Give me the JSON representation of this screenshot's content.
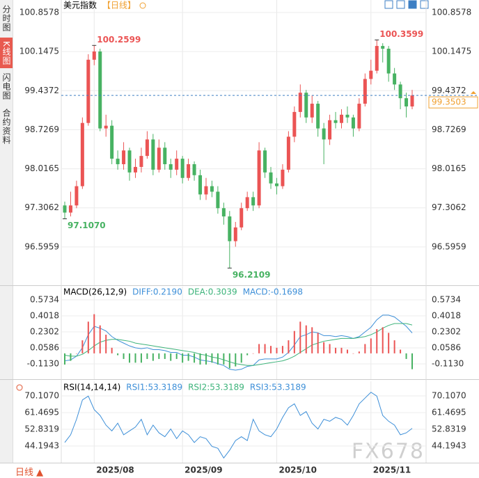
{
  "ui": {
    "tabs": [
      "分时图",
      "K线图",
      "闪电图",
      "合约资料"
    ],
    "period_button": "日线",
    "watermark": "FX678"
  },
  "chart_data": [
    {
      "type": "candlestick",
      "title": "美元指数",
      "subtitle": "【日线】",
      "up_color": "#eb5454",
      "down_color": "#47b262",
      "ylim": [
        95.898,
        101.086
      ],
      "yticks": [
        100.8578,
        100.1475,
        99.4372,
        98.7269,
        98.0165,
        97.3062,
        96.5959
      ],
      "grid": true,
      "open": [
        97.35,
        97.22,
        97.35,
        97.7,
        98.85,
        100.0,
        100.15,
        98.75,
        98.8,
        98.2,
        98.1,
        98.35,
        97.95,
        98.05,
        98.25,
        98.55,
        98.0,
        98.4,
        98.1,
        98.0,
        98.2,
        97.85,
        98.1,
        97.9,
        97.55,
        97.7,
        97.6,
        97.3,
        97.15,
        96.7,
        96.95,
        97.3,
        97.5,
        97.35,
        98.35,
        97.95,
        97.75,
        97.7,
        98.0,
        98.6,
        99.05,
        99.4,
        98.95,
        99.2,
        98.75,
        98.55,
        98.9,
        98.85,
        99.0,
        98.95,
        98.75,
        99.2,
        99.65,
        99.8,
        100.25,
        100.2,
        99.75,
        99.55,
        99.3,
        99.15
      ],
      "high": [
        97.42,
        97.6,
        97.8,
        98.95,
        100.1,
        100.2599,
        100.2,
        99.0,
        98.9,
        98.35,
        98.5,
        98.4,
        98.2,
        98.4,
        98.7,
        98.65,
        98.55,
        98.5,
        98.2,
        98.35,
        98.25,
        98.2,
        98.15,
        98.0,
        97.85,
        97.8,
        97.7,
        97.4,
        97.25,
        97.05,
        97.4,
        97.6,
        97.6,
        98.5,
        98.4,
        98.05,
        97.85,
        98.1,
        98.7,
        99.15,
        99.55,
        99.45,
        99.35,
        99.25,
        98.85,
        99.0,
        99.05,
        99.1,
        99.15,
        99.0,
        99.3,
        99.75,
        100.0,
        100.3599,
        100.3,
        100.25,
        99.85,
        99.6,
        99.4,
        99.45
      ],
      "low": [
        97.107,
        97.15,
        97.3,
        97.65,
        98.8,
        99.9,
        98.7,
        98.6,
        98.1,
        98.0,
        98.0,
        97.8,
        97.85,
        97.95,
        98.2,
        97.9,
        97.95,
        98.0,
        97.85,
        97.9,
        97.75,
        97.8,
        97.8,
        97.45,
        97.45,
        97.5,
        97.2,
        97.0,
        96.2109,
        96.6,
        96.9,
        97.25,
        97.25,
        97.3,
        97.85,
        97.65,
        97.55,
        97.65,
        97.95,
        98.5,
        98.95,
        98.85,
        98.85,
        98.6,
        98.1,
        98.45,
        98.75,
        98.75,
        98.85,
        98.6,
        98.7,
        99.15,
        99.55,
        99.75,
        99.95,
        99.6,
        99.45,
        99.1,
        98.95,
        99.1
      ],
      "close": [
        97.22,
        97.35,
        97.7,
        98.85,
        100.0,
        100.15,
        98.75,
        98.8,
        98.2,
        98.1,
        98.35,
        97.95,
        98.05,
        98.25,
        98.55,
        98.0,
        98.4,
        98.1,
        98.0,
        98.2,
        97.85,
        98.1,
        97.9,
        97.55,
        97.7,
        97.6,
        97.3,
        97.15,
        96.7,
        96.95,
        97.3,
        97.5,
        97.35,
        98.35,
        97.95,
        97.75,
        97.7,
        98.0,
        98.6,
        99.05,
        99.4,
        98.95,
        99.2,
        98.75,
        98.55,
        98.9,
        98.85,
        99.0,
        98.95,
        98.75,
        99.2,
        99.65,
        99.8,
        100.25,
        100.2,
        99.75,
        99.55,
        99.3,
        99.15,
        99.3503
      ],
      "extremes": [
        {
          "index": 5,
          "field": "high",
          "label": "100.2599",
          "color": "#eb5454"
        },
        {
          "index": 0,
          "field": "low",
          "label": "97.1070",
          "color": "#47b262"
        },
        {
          "index": 28,
          "field": "low",
          "label": "96.2109",
          "color": "#47b262"
        },
        {
          "index": 53,
          "field": "high",
          "label": "100.3599",
          "color": "#eb5454"
        }
      ],
      "last_price": 99.3503,
      "last_price_color": "#f0a030"
    },
    {
      "type": "macd",
      "title": "MACD(26,12,9)",
      "ylim": [
        -0.277,
        0.7152
      ],
      "yticks": [
        0.5734,
        0.4018,
        0.2302,
        0.0586,
        {
          "value": -0.113,
          "label": "-0.1130"
        }
      ],
      "up_color": "#eb5454",
      "down_color": "#47b262",
      "series": [
        {
          "name": "DIFF:0.2190",
          "color": "#3d8fd8",
          "values": [
            -0.08,
            -0.07,
            -0.03,
            0.06,
            0.2,
            0.29,
            0.27,
            0.24,
            0.18,
            0.14,
            0.11,
            0.08,
            0.06,
            0.05,
            0.06,
            0.04,
            0.04,
            0.03,
            0.01,
            0.01,
            -0.02,
            -0.02,
            -0.04,
            -0.07,
            -0.08,
            -0.09,
            -0.11,
            -0.13,
            -0.17,
            -0.18,
            -0.17,
            -0.14,
            -0.13,
            -0.07,
            -0.06,
            -0.06,
            -0.06,
            -0.04,
            0.01,
            0.09,
            0.18,
            0.2,
            0.23,
            0.22,
            0.19,
            0.19,
            0.18,
            0.19,
            0.18,
            0.16,
            0.18,
            0.23,
            0.28,
            0.36,
            0.41,
            0.41,
            0.39,
            0.34,
            0.29,
            0.219
          ]
        },
        {
          "name": "DEA:0.3039",
          "color": "#3cb37a",
          "values": [
            -0.02,
            -0.03,
            -0.03,
            -0.01,
            0.03,
            0.08,
            0.12,
            0.14,
            0.15,
            0.15,
            0.14,
            0.13,
            0.11,
            0.1,
            0.09,
            0.08,
            0.07,
            0.06,
            0.05,
            0.04,
            0.03,
            0.02,
            0.01,
            -0.01,
            -0.02,
            -0.04,
            -0.05,
            -0.07,
            -0.09,
            -0.11,
            -0.12,
            -0.13,
            -0.13,
            -0.12,
            -0.11,
            -0.1,
            -0.09,
            -0.08,
            -0.06,
            -0.03,
            0.01,
            0.05,
            0.09,
            0.11,
            0.13,
            0.14,
            0.15,
            0.16,
            0.16,
            0.16,
            0.17,
            0.18,
            0.2,
            0.23,
            0.27,
            0.3,
            0.32,
            0.32,
            0.32,
            0.3039
          ]
        },
        {
          "name": "MACD:-0.1698",
          "color": "#3d8fd8",
          "type": "histogram",
          "values": [
            -0.12,
            -0.08,
            0,
            0.14,
            0.34,
            0.42,
            0.3,
            0.2,
            0.06,
            -0.02,
            -0.06,
            -0.1,
            -0.1,
            -0.1,
            -0.06,
            -0.08,
            -0.06,
            -0.06,
            -0.08,
            -0.06,
            -0.1,
            -0.08,
            -0.1,
            -0.12,
            -0.12,
            -0.1,
            -0.12,
            -0.12,
            -0.16,
            -0.14,
            -0.1,
            -0.02,
            0,
            0.1,
            0.1,
            0.08,
            0.06,
            0.08,
            0.14,
            0.24,
            0.34,
            0.3,
            0.28,
            0.22,
            0.12,
            0.1,
            0.06,
            0.06,
            0.04,
            0,
            0.02,
            0.1,
            0.16,
            0.26,
            0.28,
            0.22,
            0.14,
            0.04,
            -0.06,
            -0.1698
          ]
        }
      ]
    },
    {
      "type": "rsi",
      "title": "RSI(14,14,14)",
      "ylim": [
        35.557,
        77.665
      ],
      "yticks": [
        {
          "value": 70.107,
          "label": "70.1070"
        },
        61.4695,
        52.8319,
        44.1943
      ],
      "legend": [
        {
          "name": "RSI1:53.3189",
          "color": "#3d8fd8"
        },
        {
          "name": "RSI2:53.3189",
          "color": "#3cb37a"
        },
        {
          "name": "RSI3:53.3189",
          "color": "#3d8fd8"
        }
      ],
      "color": "#3d8fd8",
      "values": [
        46,
        50,
        58,
        68,
        70,
        63,
        60,
        55,
        52,
        56,
        50,
        52,
        54,
        58,
        50,
        55,
        51,
        49,
        53,
        48,
        52,
        50,
        46,
        49,
        48,
        44,
        43,
        38,
        42,
        47,
        49,
        47,
        58,
        52,
        50,
        49,
        53,
        59,
        64,
        66,
        60,
        62,
        56,
        53,
        58,
        57,
        59,
        58,
        55,
        60,
        66,
        69,
        72,
        70,
        60,
        57,
        55,
        50,
        51,
        53.3189
      ],
      "categories": [
        null,
        null,
        null,
        null,
        null,
        "2025/08",
        null,
        null,
        null,
        null,
        null,
        null,
        null,
        null,
        null,
        null,
        null,
        null,
        null,
        null,
        "2025/09",
        null,
        null,
        null,
        null,
        null,
        null,
        null,
        null,
        null,
        null,
        null,
        null,
        null,
        null,
        null,
        "2025/10",
        null,
        null,
        null,
        null,
        null,
        null,
        null,
        null,
        null,
        null,
        null,
        null,
        null,
        null,
        null,
        "2025/11",
        null,
        null,
        null,
        null,
        null,
        null,
        null
      ]
    }
  ]
}
